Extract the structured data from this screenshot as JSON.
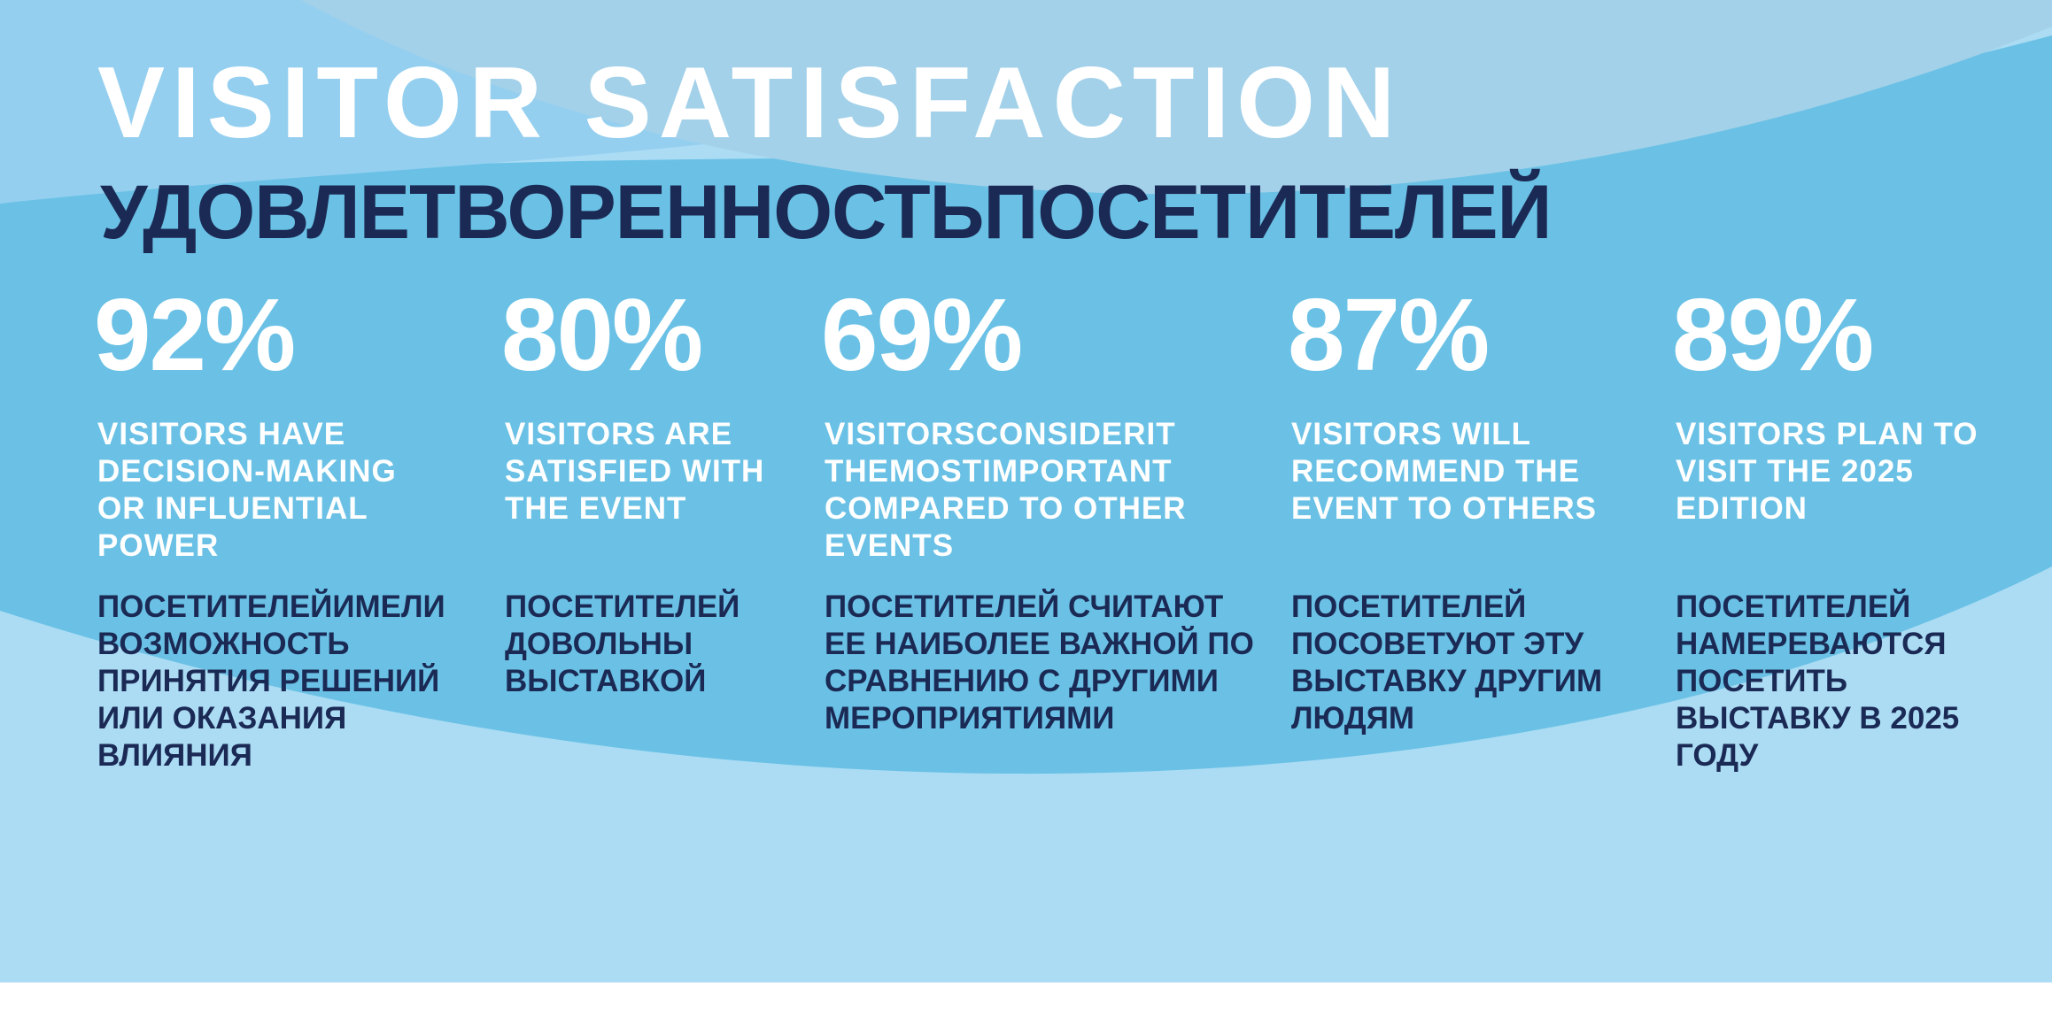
{
  "title": {
    "en": "VISITOR SATISFACTION",
    "ru": "УДОВЛЕТВОРЕННОСТЬПОСЕТИТЕЛЕЙ"
  },
  "stats": [
    {
      "value": "92%",
      "en": "VISITORS HAVE DECISION-MAKING OR INFLUENTIAL POWER",
      "ru": "ПОСЕТИТЕЛЕЙИМЕЛИ ВОЗМОЖНОСТЬ ПРИНЯТИЯ РЕШЕНИЙ ИЛИ ОКАЗАНИЯ ВЛИЯНИЯ"
    },
    {
      "value": "80%",
      "en": "VISITORS ARE SATISFIED WITH THE EVENT",
      "ru": "ПОСЕТИТЕЛЕЙ ДОВОЛЬНЫ ВЫСТАВКОЙ"
    },
    {
      "value": "69%",
      "en": "VISITORSCONSIDERIT THEMOSTIMPORTANT COMPARED TO OTHER EVENTS",
      "ru": "ПОСЕТИТЕЛЕЙ СЧИТАЮТ ЕЕ НАИБОЛЕЕ ВАЖНОЙ ПО СРАВНЕНИЮ С ДРУГИМИ МЕРОПРИЯТИЯМИ"
    },
    {
      "value": "87%",
      "en": "VISITORS WILL RECOMMEND THE EVENT TO OTHERS",
      "ru": "ПОСЕТИТЕЛЕЙ ПОСОВЕТУЮТ ЭТУ ВЫСТАВКУ ДРУГИМ ЛЮДЯМ"
    },
    {
      "value": "89%",
      "en": "VISITORS PLAN TO VISIT THE 2025 EDITION",
      "ru": "ПОСЕТИТЕЛЕЙ НАМЕРЕВАЮТСЯ ПОСЕТИТЬ ВЫСТАВКУ В 2025 ГОДУ"
    }
  ],
  "colors": {
    "bg_light": "#abdcf4",
    "wave_mid": "#6ac1e5",
    "wave_top_left": "#94cff0",
    "wave_top_right": "#a3d1e9",
    "title_white": "#ffffff",
    "title_navy": "#1b2a55"
  }
}
